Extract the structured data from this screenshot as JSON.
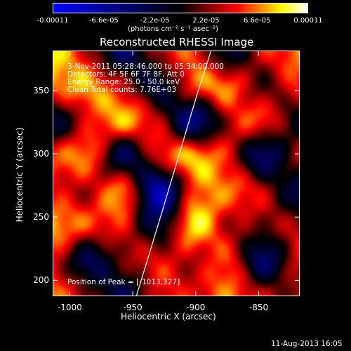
{
  "chart_data": {
    "type": "heatmap",
    "title": "Reconstructed RHESSI Image",
    "xlabel": "Heliocentric X (arcsec)",
    "ylabel": "Heliocentric Y (arcsec)",
    "xlim": [
      -1013,
      -818
    ],
    "ylim": [
      188,
      381
    ],
    "x_ticks": [
      -1000,
      -950,
      -900,
      -850
    ],
    "x_tick_labels": [
      "-1000",
      "-950",
      "-900",
      "-850"
    ],
    "y_ticks": [
      200,
      250,
      300,
      350
    ],
    "y_tick_labels": [
      "200",
      "250",
      "300",
      "350"
    ],
    "colorbar": {
      "ticks": [
        -0.00011,
        -6.6e-05,
        -2.2e-05,
        2.2e-05,
        6.6e-05,
        0.00011
      ],
      "tick_labels": [
        "-0.00011",
        "-6.6e-05",
        "-2.2e-05",
        "2.2e-05",
        "6.6e-05",
        "0.00011"
      ],
      "units": "(photons cm⁻² s⁻¹ asec⁻²)",
      "colors": [
        "#0000ff",
        "#000000",
        "#ff0000",
        "#ffff00",
        "#ffffff"
      ]
    },
    "annotations": [
      "3-Nov-2011 05:28:46.000 to 05:34:00.000",
      "Detectors: 4F 5F 6F 7F 8F, Att 0",
      "Energy Range: 25.0 - 50.0 keV",
      "Clean     Total counts: 7.76E+03"
    ],
    "peak_text": "Position of Peak = [-1013,327]",
    "limb_line": [
      [
        -947,
        188
      ],
      [
        -928,
        250
      ],
      [
        -913,
        300
      ],
      [
        -898,
        350
      ],
      [
        -888,
        381
      ]
    ],
    "field": {
      "grid": [
        8,
        8
      ],
      "values": [
        [
          0.8,
          0.3,
          -0.4,
          0.3,
          0.5,
          -0.2,
          0.4,
          0.6
        ],
        [
          0.6,
          0.7,
          0.3,
          -0.2,
          0.5,
          0.6,
          0.1,
          0.5
        ],
        [
          -0.2,
          0.4,
          0.7,
          0.3,
          -0.5,
          0.3,
          0.5,
          -0.1
        ],
        [
          0.5,
          0.6,
          -0.3,
          0.4,
          0.7,
          0.4,
          -0.4,
          0.3
        ],
        [
          0.4,
          0.3,
          0.6,
          -0.7,
          0.5,
          0.6,
          0.3,
          -0.3
        ],
        [
          0.7,
          0.5,
          0.4,
          -0.2,
          0.8,
          0.3,
          0.2,
          0.3
        ],
        [
          0.4,
          -0.3,
          0.2,
          0.4,
          0.3,
          0.5,
          -0.4,
          0.4
        ],
        [
          0.6,
          0.2,
          -0.3,
          0.4,
          0.4,
          0.6,
          0.3,
          0.2
        ]
      ]
    }
  },
  "footer": {
    "date": "11-Aug-2013 16:05"
  }
}
